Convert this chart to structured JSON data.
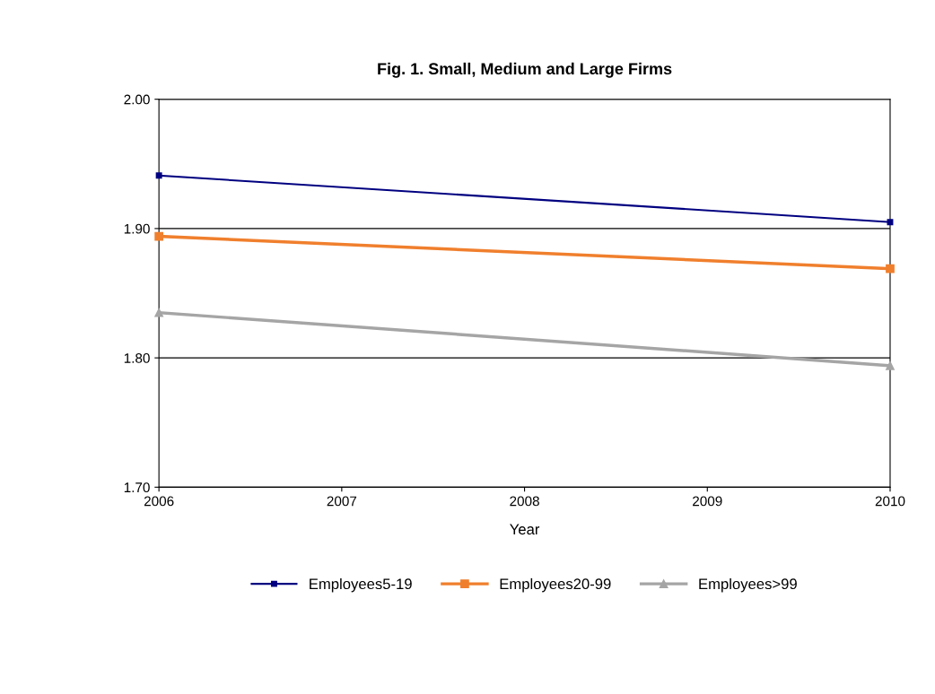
{
  "chart_data": {
    "type": "line",
    "title": "Fig. 1. Small, Medium and Large Firms",
    "xlabel": "Year",
    "x": [
      2006,
      2010
    ],
    "series": [
      {
        "name": "Employees5-19",
        "color": "#000080",
        "values": [
          1.941,
          1.905
        ],
        "marker": "square"
      },
      {
        "name": "Employees20-99",
        "color": "#f07f2d",
        "values": [
          1.894,
          1.869
        ],
        "marker": "square"
      },
      {
        "name": "Employees>99",
        "color": "#a5a5a5",
        "values": [
          1.835,
          1.794
        ],
        "marker": "triangle"
      }
    ],
    "xlim": [
      2006,
      2010
    ],
    "xticks": [
      2006,
      2007,
      2008,
      2009,
      2010
    ],
    "ylim": [
      1.7,
      2.0
    ],
    "yticks": [
      {
        "value": 1.7,
        "label": "1.70"
      },
      {
        "value": 1.8,
        "label": "1.80"
      },
      {
        "value": 1.9,
        "label": "1.90"
      },
      {
        "value": 2.0,
        "label": "2.00"
      }
    ],
    "grid": "y",
    "legend": "bottom",
    "line_style": "solid"
  }
}
